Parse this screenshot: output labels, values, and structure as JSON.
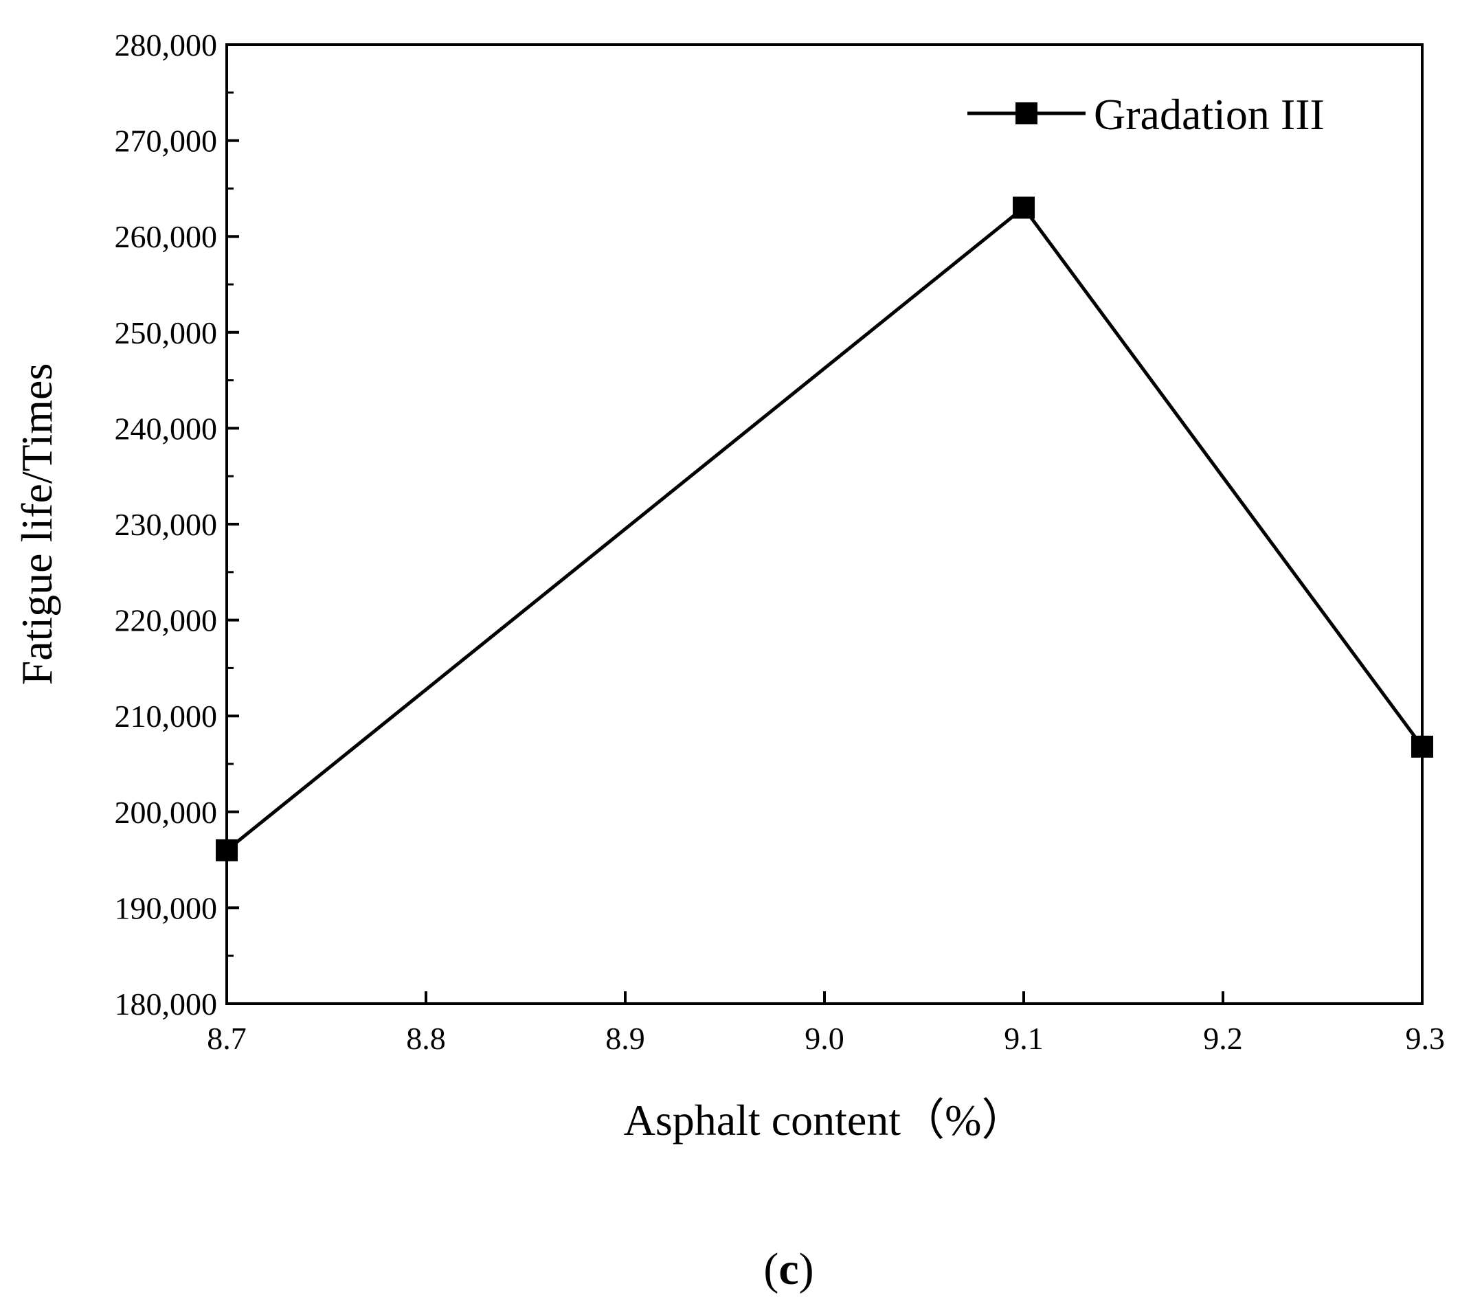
{
  "chart_data": {
    "type": "line",
    "xlabel": "Asphalt content（%）",
    "ylabel": "Fatigue life/Times",
    "xlim": [
      8.7,
      9.3
    ],
    "ylim": [
      180000,
      280000
    ],
    "x_ticks": [
      "8.7",
      "8.8",
      "8.9",
      "9.0",
      "9.1",
      "9.2",
      "9.3"
    ],
    "y_ticks": [
      "180,000",
      "190,000",
      "200,000",
      "210,000",
      "220,000",
      "230,000",
      "240,000",
      "250,000",
      "260,000",
      "270,000",
      "280,000"
    ],
    "grid": false,
    "legend_position": "top-right",
    "series": [
      {
        "name": "Gradation III",
        "x": [
          8.7,
          9.1,
          9.3
        ],
        "y": [
          196000,
          263000,
          206800
        ],
        "color": "#000000",
        "marker": "square"
      }
    ]
  },
  "panel_label": {
    "open": "(",
    "letter": "c",
    "close": ")"
  }
}
